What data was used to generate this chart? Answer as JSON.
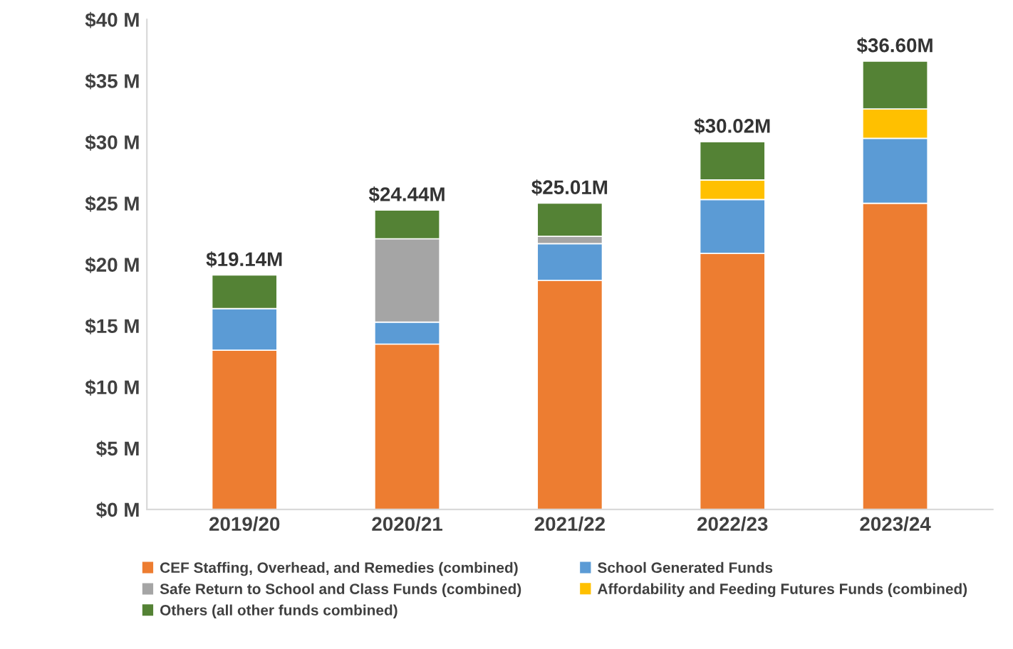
{
  "chart_data": {
    "type": "bar",
    "stacked": true,
    "categories": [
      "2019/20",
      "2020/21",
      "2021/22",
      "2022/23",
      "2023/24"
    ],
    "series": [
      {
        "name": "CEF Staffing, Overhead, and Remedies (combined)",
        "color": "#ed7d31",
        "values": [
          13.0,
          13.5,
          18.7,
          20.9,
          25.0
        ]
      },
      {
        "name": "School Generated Funds",
        "color": "#5b9bd5",
        "values": [
          3.4,
          1.8,
          3.0,
          4.4,
          5.3
        ]
      },
      {
        "name": "Safe Return to School and Class Funds (combined)",
        "color": "#a5a5a5",
        "values": [
          null,
          6.8,
          0.6,
          null,
          null
        ]
      },
      {
        "name": "Affordability and Feeding Futures Funds (combined)",
        "color": "#ffc000",
        "values": [
          null,
          null,
          null,
          1.6,
          2.4
        ]
      },
      {
        "name": "Others (all other funds combined)",
        "color": "#548235",
        "values": [
          2.74,
          2.34,
          2.71,
          3.12,
          3.9
        ]
      }
    ],
    "totals": [
      "$19.14M",
      "$24.44M",
      "$25.01M",
      "$30.02M",
      "$36.60M"
    ],
    "ylim": [
      0,
      40
    ],
    "yticks": [
      {
        "value": 0,
        "label": "$0 M"
      },
      {
        "value": 5,
        "label": "$5 M"
      },
      {
        "value": 10,
        "label": "$10 M"
      },
      {
        "value": 15,
        "label": "$15 M"
      },
      {
        "value": 20,
        "label": "$20 M"
      },
      {
        "value": 25,
        "label": "$25 M"
      },
      {
        "value": 30,
        "label": "$30 M"
      },
      {
        "value": 35,
        "label": "$35 M"
      },
      {
        "value": 40,
        "label": "$40 M"
      }
    ],
    "grid": false,
    "legend": "bottom"
  }
}
